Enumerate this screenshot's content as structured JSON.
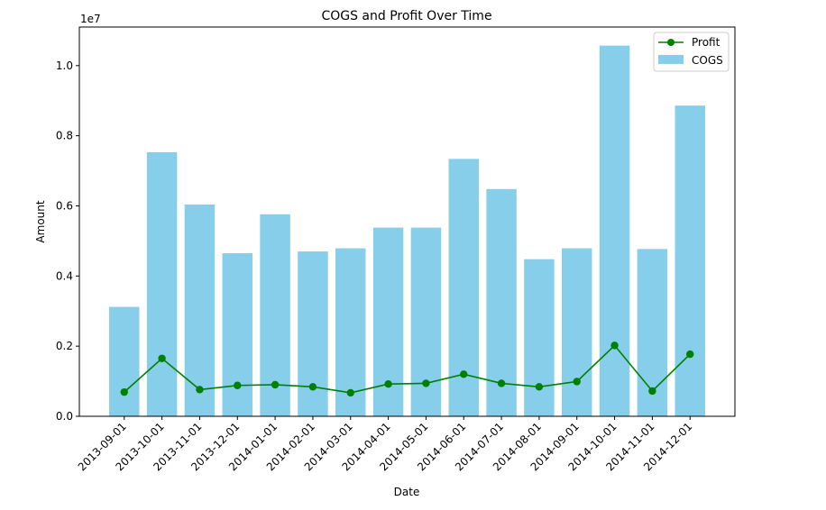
{
  "chart_data": {
    "type": "bar",
    "title": "COGS and Profit Over Time",
    "xlabel": "Date",
    "ylabel": "Amount",
    "y_offset_label": "1e7",
    "ylim": [
      0,
      11100000
    ],
    "yticks": [
      "0.0",
      "0.2",
      "0.4",
      "0.6",
      "0.8",
      "1.0"
    ],
    "categories": [
      "2013-09-01",
      "2013-10-01",
      "2013-11-01",
      "2013-12-01",
      "2014-01-01",
      "2014-02-01",
      "2014-03-01",
      "2014-04-01",
      "2014-05-01",
      "2014-06-01",
      "2014-07-01",
      "2014-08-01",
      "2014-09-01",
      "2014-10-01",
      "2014-11-01",
      "2014-12-01"
    ],
    "series": [
      {
        "name": "COGS",
        "kind": "bar",
        "color": "#87ceeb",
        "values": [
          3120000,
          7530000,
          6040000,
          4650000,
          5760000,
          4700000,
          4790000,
          5380000,
          5380000,
          7340000,
          6480000,
          4480000,
          4790000,
          10570000,
          4770000,
          8860000
        ]
      },
      {
        "name": "Profit",
        "kind": "line",
        "color": "#008000",
        "marker": "circle",
        "values": [
          690000,
          1650000,
          760000,
          880000,
          900000,
          840000,
          670000,
          920000,
          940000,
          1200000,
          940000,
          840000,
          990000,
          2020000,
          720000,
          1770000
        ]
      }
    ],
    "legend": {
      "placement": "upper-right",
      "entries": [
        "Profit",
        "COGS"
      ]
    },
    "grid": false
  }
}
